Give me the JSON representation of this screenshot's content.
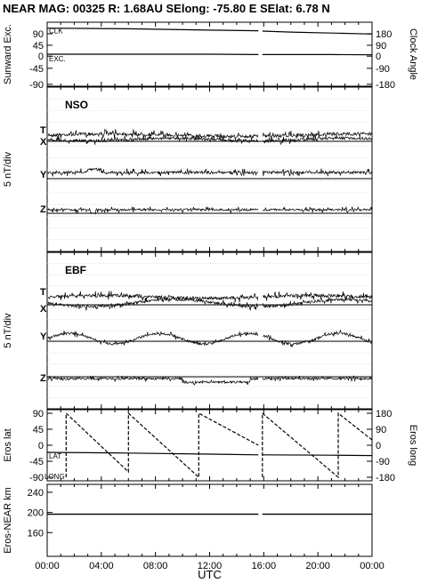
{
  "header": {
    "title": "NEAR MAG: 00325  R: 1.68AU  SElong:  -75.80 E  SElat:    6.78 N"
  },
  "chart_data": [
    {
      "type": "line",
      "panel": "sunward-clock",
      "ylabel": "Sunward Exc.",
      "ylabel_right": "Clock Angle",
      "ylim": [
        -90,
        90
      ],
      "ylim_right": [
        -180,
        180
      ],
      "yticks": [
        "90",
        "45",
        "0",
        "-45",
        "-90"
      ],
      "yticks_right": [
        "180",
        "90",
        "0",
        "-90",
        "-180"
      ],
      "series": [
        {
          "name": "CLK",
          "x": [
            0,
            3,
            6,
            9,
            12,
            15.6,
            15.9,
            18,
            21,
            24
          ],
          "values": [
            160,
            158,
            156,
            152,
            148,
            144,
            142,
            136,
            130,
            124
          ]
        },
        {
          "name": "EXC.",
          "x": [
            0,
            3,
            6,
            9,
            12,
            15.6,
            15.9,
            18,
            21,
            24
          ],
          "values": [
            0,
            0,
            0,
            0,
            0,
            -1,
            -1,
            -1,
            -1,
            -2
          ]
        }
      ],
      "gaps": [
        [
          15.6,
          15.9
        ]
      ]
    },
    {
      "type": "line",
      "panel": "nso",
      "title": "NSO",
      "ylabel": "5 nT/div",
      "series": [
        {
          "name": "T"
        },
        {
          "name": "X"
        },
        {
          "name": "Y"
        },
        {
          "name": "Z"
        }
      ]
    },
    {
      "type": "line",
      "panel": "ebf",
      "title": "EBF",
      "ylabel": "5 nT/div",
      "series": [
        {
          "name": "T"
        },
        {
          "name": "X"
        },
        {
          "name": "Y"
        },
        {
          "name": "Z"
        }
      ]
    },
    {
      "type": "line",
      "panel": "eros-lat-long",
      "ylabel": "Eros lat",
      "ylabel_right": "Eros long",
      "ylim": [
        -90,
        90
      ],
      "ylim_right": [
        -180,
        180
      ],
      "yticks": [
        "90",
        "45",
        "0",
        "-45",
        "-90"
      ],
      "yticks_right": [
        "180",
        "90",
        "0",
        "-90",
        "-180"
      ],
      "series": [
        {
          "name": "LAT",
          "x": [
            0,
            6,
            12,
            15.6,
            15.9,
            21,
            24
          ],
          "values": [
            -20,
            -22,
            -25,
            -27,
            -27,
            -28,
            -29
          ]
        },
        {
          "name": "LONG",
          "x": [
            1.4,
            1.4,
            6.0,
            6.0,
            11.2,
            11.2,
            15.6,
            15.9,
            15.9,
            21.5,
            21.5,
            24
          ],
          "values": [
            -180,
            180,
            -150,
            180,
            -180,
            180,
            0,
            -180,
            180,
            -180,
            180,
            30
          ]
        }
      ],
      "gaps": [
        [
          15.6,
          15.9
        ]
      ]
    },
    {
      "type": "line",
      "panel": "eros-near-km",
      "ylabel": "Eros-NEAR km",
      "ylim": [
        120,
        260
      ],
      "yticks": [
        "240",
        "200",
        "160"
      ],
      "series": [
        {
          "name": "Range",
          "x": [
            0,
            6,
            12,
            15.6,
            15.9,
            21,
            24
          ],
          "values": [
            198,
            198,
            198,
            198,
            198,
            198,
            198
          ]
        }
      ],
      "gaps": [
        [
          15.6,
          15.9
        ]
      ],
      "xlabel": "UTC",
      "xticks": [
        "00:00",
        "04:00",
        "08:00",
        "12:00",
        "16:00",
        "20:00",
        "00:00"
      ],
      "xlim": [
        0,
        24
      ]
    }
  ]
}
